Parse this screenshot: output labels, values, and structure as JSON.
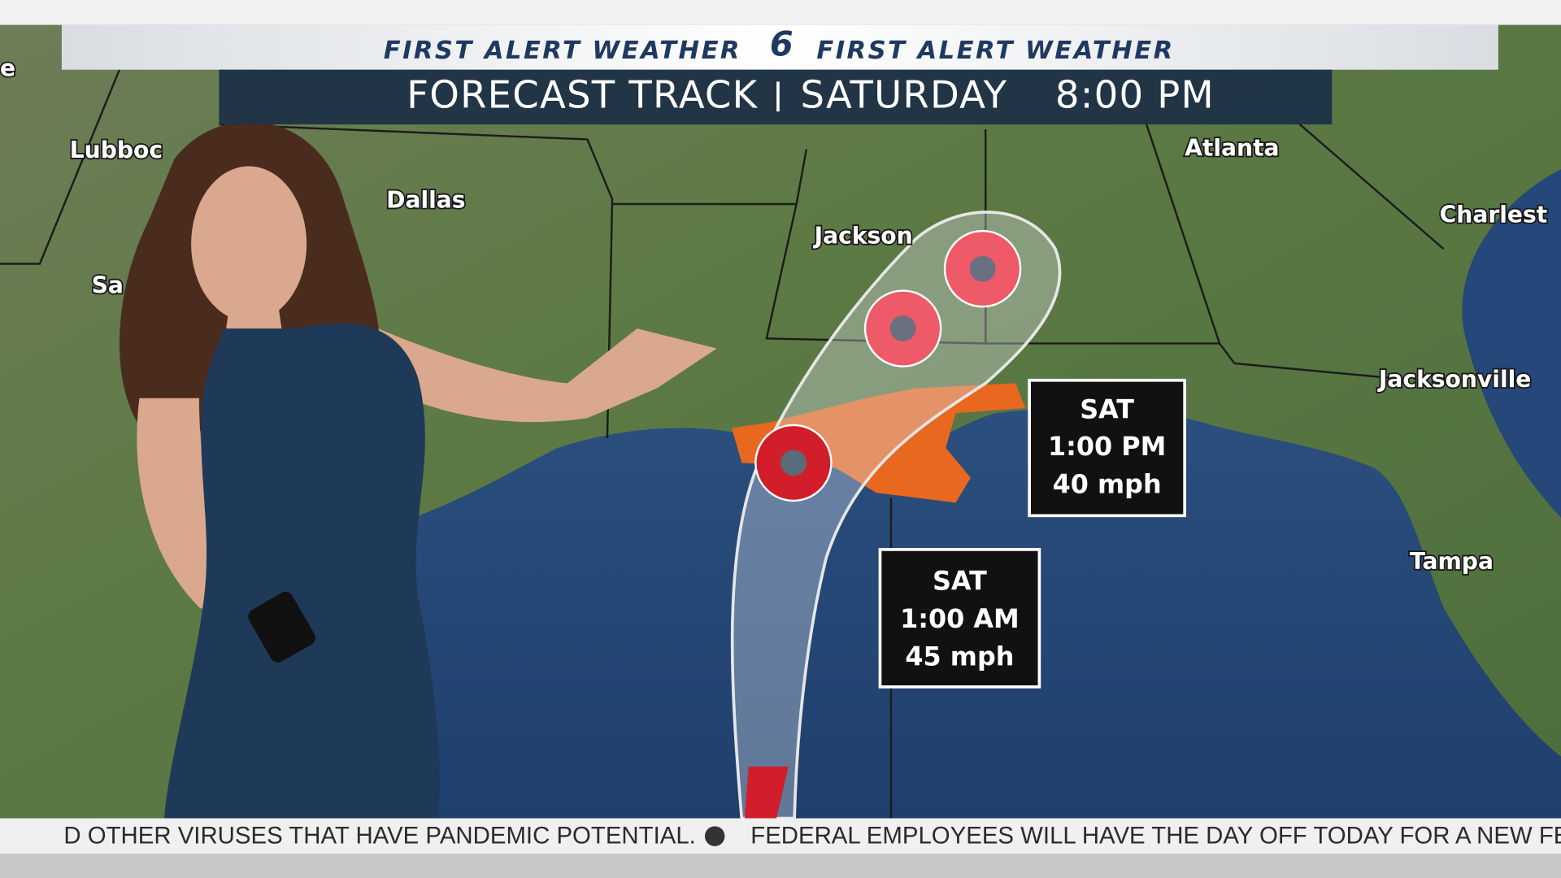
{
  "header": {
    "left": "FIRST ALERT WEATHER",
    "logo": "6",
    "right": "FIRST ALERT WEATHER"
  },
  "title_bar": {
    "title": "FORECAST TRACK",
    "day": "SATURDAY",
    "time": "8:00 PM"
  },
  "map_labels": [
    "Lubboc",
    "Dallas",
    "Sa",
    "Jackson",
    "Atlanta",
    "Charlest",
    "Jacksonville",
    "Tampa",
    "e"
  ],
  "forecast_points": [
    {
      "day": "SAT",
      "time": "1:00 PM",
      "wind": "40 mph"
    },
    {
      "day": "SAT",
      "time": "1:00 AM",
      "wind": "45 mph"
    }
  ],
  "ticker": {
    "left": "D OTHER VIRUSES THAT HAVE PANDEMIC POTENTIAL.",
    "right": "FEDERAL EMPLOYEES WILL HAVE THE DAY OFF TODAY FOR A NEW FE"
  }
}
